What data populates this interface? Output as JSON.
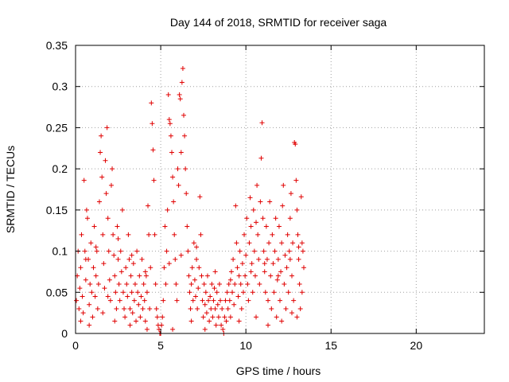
{
  "chart_data": {
    "type": "scatter",
    "title": "Day 144 of 2018, SRMTID for receiver saga",
    "xlabel": "GPS time / hours",
    "ylabel": "SRMTID / TECUs",
    "xlim": [
      0,
      24
    ],
    "ylim": [
      0,
      0.35
    ],
    "xticks": [
      0,
      5,
      10,
      15,
      20
    ],
    "xtick_labels": [
      "0",
      "5",
      "10",
      "15",
      "20"
    ],
    "yticks": [
      0,
      0.05,
      0.1,
      0.15,
      0.2,
      0.25,
      0.3,
      0.35
    ],
    "ytick_labels": [
      "0",
      "0.05",
      "0.1",
      "0.15",
      "0.2",
      "0.25",
      "0.3",
      "0.35"
    ],
    "grid": true,
    "marker": "plus",
    "color": "#e00000",
    "series": [
      {
        "name": "SRMTID",
        "points": [
          [
            0.05,
            0.04
          ],
          [
            0.1,
            0.07
          ],
          [
            0.15,
            0.1
          ],
          [
            0.2,
            0.03
          ],
          [
            0.25,
            0.055
          ],
          [
            0.3,
            0.08
          ],
          [
            0.35,
            0.12
          ],
          [
            0.4,
            0.045
          ],
          [
            0.45,
            0.025
          ],
          [
            0.5,
            0.186
          ],
          [
            0.55,
            0.1
          ],
          [
            0.6,
            0.065
          ],
          [
            0.65,
            0.15
          ],
          [
            0.7,
            0.14
          ],
          [
            0.75,
            0.09
          ],
          [
            0.8,
            0.035
          ],
          [
            0.85,
            0.06
          ],
          [
            0.9,
            0.11
          ],
          [
            0.95,
            0.05
          ],
          [
            1.0,
            0.02
          ],
          [
            1.05,
            0.08
          ],
          [
            1.1,
            0.13
          ],
          [
            1.15,
            0.045
          ],
          [
            1.2,
            0.07
          ],
          [
            1.25,
            0.1
          ],
          [
            1.3,
            0.03
          ],
          [
            1.35,
            0.06
          ],
          [
            1.4,
            0.16
          ],
          [
            1.45,
            0.22
          ],
          [
            1.5,
            0.24
          ],
          [
            1.55,
            0.19
          ],
          [
            1.6,
            0.12
          ],
          [
            1.65,
            0.085
          ],
          [
            1.7,
            0.055
          ],
          [
            1.75,
            0.21
          ],
          [
            1.8,
            0.17
          ],
          [
            1.85,
            0.25
          ],
          [
            1.9,
            0.14
          ],
          [
            1.95,
            0.1
          ],
          [
            2.0,
            0.065
          ],
          [
            2.05,
            0.04
          ],
          [
            2.1,
            0.18
          ],
          [
            2.15,
            0.2
          ],
          [
            2.2,
            0.12
          ],
          [
            2.25,
            0.095
          ],
          [
            2.3,
            0.07
          ],
          [
            2.35,
            0.05
          ],
          [
            2.4,
            0.03
          ],
          [
            2.45,
            0.13
          ],
          [
            2.5,
            0.09
          ],
          [
            2.55,
            0.06
          ],
          [
            2.6,
            0.04
          ],
          [
            2.65,
            0.1
          ],
          [
            2.7,
            0.075
          ],
          [
            2.75,
            0.15
          ],
          [
            2.8,
            0.05
          ],
          [
            2.85,
            0.03
          ],
          [
            2.9,
            0.02
          ],
          [
            2.95,
            0.08
          ],
          [
            3.0,
            0.06
          ],
          [
            3.05,
            0.045
          ],
          [
            3.1,
            0.12
          ],
          [
            3.15,
            0.09
          ],
          [
            3.2,
            0.03
          ],
          [
            3.25,
            0.07
          ],
          [
            3.3,
            0.05
          ],
          [
            3.35,
            0.025
          ],
          [
            3.4,
            0.085
          ],
          [
            3.45,
            0.04
          ],
          [
            3.5,
            0.06
          ],
          [
            3.55,
            0.015
          ],
          [
            3.6,
            0.1
          ],
          [
            3.65,
            0.05
          ],
          [
            3.7,
            0.035
          ],
          [
            3.75,
            0.07
          ],
          [
            3.8,
            0.02
          ],
          [
            3.85,
            0.045
          ],
          [
            3.9,
            0.09
          ],
          [
            3.95,
            0.03
          ],
          [
            4.0,
            0.06
          ],
          [
            4.05,
            0.04
          ],
          [
            4.1,
            0.015
          ],
          [
            4.15,
            0.07
          ],
          [
            4.2,
            0.05
          ],
          [
            4.25,
            0.155
          ],
          [
            4.3,
            0.12
          ],
          [
            4.35,
            0.03
          ],
          [
            4.4,
            0.08
          ],
          [
            4.45,
            0.28
          ],
          [
            4.5,
            0.255
          ],
          [
            4.55,
            0.223
          ],
          [
            4.6,
            0.186
          ],
          [
            4.65,
            0.12
          ],
          [
            4.7,
            0.06
          ],
          [
            4.75,
            0.03
          ],
          [
            4.8,
            0.02
          ],
          [
            4.85,
            0.01
          ],
          [
            4.9,
            0.005
          ],
          [
            4.95,
            0.0
          ],
          [
            5.0,
            0.0
          ],
          [
            5.05,
            0.01
          ],
          [
            5.1,
            0.02
          ],
          [
            5.15,
            0.04
          ],
          [
            5.2,
            0.08
          ],
          [
            5.25,
            0.13
          ],
          [
            5.3,
            0.06
          ],
          [
            5.35,
            0.1
          ],
          [
            5.4,
            0.15
          ],
          [
            5.45,
            0.29
          ],
          [
            5.5,
            0.26
          ],
          [
            5.55,
            0.255
          ],
          [
            5.6,
            0.24
          ],
          [
            5.65,
            0.22
          ],
          [
            5.7,
            0.19
          ],
          [
            5.75,
            0.16
          ],
          [
            5.8,
            0.12
          ],
          [
            5.85,
            0.09
          ],
          [
            5.9,
            0.06
          ],
          [
            5.95,
            0.04
          ],
          [
            6.0,
            0.2
          ],
          [
            6.05,
            0.18
          ],
          [
            6.1,
            0.29
          ],
          [
            6.15,
            0.285
          ],
          [
            6.2,
            0.22
          ],
          [
            6.25,
            0.305
          ],
          [
            6.3,
            0.322
          ],
          [
            6.35,
            0.265
          ],
          [
            6.4,
            0.24
          ],
          [
            6.45,
            0.2
          ],
          [
            6.5,
            0.17
          ],
          [
            6.55,
            0.13
          ],
          [
            6.6,
            0.1
          ],
          [
            6.65,
            0.07
          ],
          [
            6.7,
            0.05
          ],
          [
            6.75,
            0.03
          ],
          [
            6.8,
            0.06
          ],
          [
            6.85,
            0.08
          ],
          [
            6.9,
            0.04
          ],
          [
            6.95,
            0.11
          ],
          [
            7.0,
            0.065
          ],
          [
            7.05,
            0.045
          ],
          [
            7.1,
            0.09
          ],
          [
            7.15,
            0.03
          ],
          [
            7.2,
            0.055
          ],
          [
            7.25,
            0.08
          ],
          [
            7.3,
            0.166
          ],
          [
            7.35,
            0.12
          ],
          [
            7.4,
            0.07
          ],
          [
            7.45,
            0.04
          ],
          [
            7.5,
            0.02
          ],
          [
            7.55,
            0.06
          ],
          [
            7.6,
            0.035
          ],
          [
            7.65,
            0.05
          ],
          [
            7.7,
            0.025
          ],
          [
            7.75,
            0.07
          ],
          [
            7.8,
            0.04
          ],
          [
            7.85,
            0.015
          ],
          [
            7.9,
            0.045
          ],
          [
            7.95,
            0.03
          ],
          [
            8.0,
            0.06
          ],
          [
            8.05,
            0.02
          ],
          [
            8.1,
            0.04
          ],
          [
            8.15,
            0.055
          ],
          [
            8.2,
            0.03
          ],
          [
            8.25,
            0.01
          ],
          [
            8.3,
            0.05
          ],
          [
            8.35,
            0.035
          ],
          [
            8.4,
            0.02
          ],
          [
            8.45,
            0.06
          ],
          [
            8.5,
            0.04
          ],
          [
            8.55,
            0.01
          ],
          [
            8.6,
            0.03
          ],
          [
            8.65,
            0.005
          ],
          [
            8.7,
            0.0
          ],
          [
            8.75,
            0.02
          ],
          [
            8.8,
            0.04
          ],
          [
            8.85,
            0.015
          ],
          [
            8.9,
            0.05
          ],
          [
            8.95,
            0.03
          ],
          [
            9.0,
            0.06
          ],
          [
            9.05,
            0.04
          ],
          [
            9.1,
            0.02
          ],
          [
            9.15,
            0.075
          ],
          [
            9.2,
            0.05
          ],
          [
            9.25,
            0.09
          ],
          [
            9.3,
            0.035
          ],
          [
            9.35,
            0.06
          ],
          [
            9.4,
            0.155
          ],
          [
            9.45,
            0.11
          ],
          [
            9.5,
            0.08
          ],
          [
            9.55,
            0.045
          ],
          [
            9.6,
            0.07
          ],
          [
            9.65,
            0.1
          ],
          [
            9.7,
            0.06
          ],
          [
            9.75,
            0.03
          ],
          [
            9.8,
            0.085
          ],
          [
            9.85,
            0.05
          ],
          [
            9.9,
            0.12
          ],
          [
            9.95,
            0.07
          ],
          [
            10.0,
            0.095
          ],
          [
            10.05,
            0.14
          ],
          [
            10.1,
            0.06
          ],
          [
            10.15,
            0.04
          ],
          [
            10.2,
            0.11
          ],
          [
            10.25,
            0.165
          ],
          [
            10.3,
            0.13
          ],
          [
            10.35,
            0.085
          ],
          [
            10.4,
            0.05
          ],
          [
            10.45,
            0.15
          ],
          [
            10.5,
            0.1
          ],
          [
            10.55,
            0.07
          ],
          [
            10.6,
            0.135
          ],
          [
            10.65,
            0.18
          ],
          [
            10.7,
            0.12
          ],
          [
            10.75,
            0.09
          ],
          [
            10.8,
            0.06
          ],
          [
            10.85,
            0.16
          ],
          [
            10.9,
            0.213
          ],
          [
            10.95,
            0.256
          ],
          [
            11.0,
            0.14
          ],
          [
            11.05,
            0.1
          ],
          [
            11.1,
            0.075
          ],
          [
            11.15,
            0.05
          ],
          [
            11.2,
            0.13
          ],
          [
            11.25,
            0.09
          ],
          [
            11.3,
            0.04
          ],
          [
            11.35,
            0.11
          ],
          [
            11.4,
            0.16
          ],
          [
            11.45,
            0.07
          ],
          [
            11.5,
            0.03
          ],
          [
            11.55,
            0.12
          ],
          [
            11.6,
            0.085
          ],
          [
            11.65,
            0.05
          ],
          [
            11.7,
            0.1
          ],
          [
            11.75,
            0.14
          ],
          [
            11.8,
            0.02
          ],
          [
            11.85,
            0.065
          ],
          [
            11.9,
            0.09
          ],
          [
            11.95,
            0.13
          ],
          [
            12.0,
            0.04
          ],
          [
            12.05,
            0.075
          ],
          [
            12.1,
            0.11
          ],
          [
            12.15,
            0.155
          ],
          [
            12.2,
            0.18
          ],
          [
            12.25,
            0.06
          ],
          [
            12.3,
            0.095
          ],
          [
            12.35,
            0.03
          ],
          [
            12.4,
            0.08
          ],
          [
            12.45,
            0.12
          ],
          [
            12.5,
            0.05
          ],
          [
            12.55,
            0.1
          ],
          [
            12.6,
            0.14
          ],
          [
            12.65,
            0.17
          ],
          [
            12.7,
            0.07
          ],
          [
            12.75,
            0.11
          ],
          [
            12.8,
            0.04
          ],
          [
            12.85,
            0.232
          ],
          [
            12.9,
            0.23
          ],
          [
            12.95,
            0.186
          ],
          [
            13.0,
            0.15
          ],
          [
            13.05,
            0.12
          ],
          [
            13.1,
            0.09
          ],
          [
            13.15,
            0.06
          ],
          [
            13.2,
            0.03
          ],
          [
            13.25,
            0.166
          ],
          [
            13.3,
            0.11
          ],
          [
            13.35,
            0.1
          ],
          [
            13.4,
            0.08
          ],
          [
            13.3,
            0.05
          ],
          [
            13.0,
            0.02
          ],
          [
            0.3,
            0.015
          ],
          [
            0.8,
            0.01
          ],
          [
            1.6,
            0.025
          ],
          [
            2.3,
            0.015
          ],
          [
            3.2,
            0.01
          ],
          [
            4.2,
            0.005
          ],
          [
            5.7,
            0.005
          ],
          [
            6.8,
            0.015
          ],
          [
            7.6,
            0.005
          ],
          [
            9.6,
            0.015
          ],
          [
            10.6,
            0.02
          ],
          [
            11.3,
            0.01
          ],
          [
            12.1,
            0.015
          ],
          [
            12.7,
            0.025
          ],
          [
            0.6,
            0.09
          ],
          [
            1.2,
            0.105
          ],
          [
            2.5,
            0.115
          ],
          [
            3.3,
            0.095
          ],
          [
            4.1,
            0.075
          ],
          [
            5.5,
            0.085
          ],
          [
            6.2,
            0.095
          ],
          [
            7.1,
            0.105
          ],
          [
            8.2,
            0.075
          ],
          [
            9.1,
            0.065
          ],
          [
            10.3,
            0.075
          ],
          [
            11.1,
            0.085
          ],
          [
            11.9,
            0.07
          ],
          [
            12.6,
            0.09
          ],
          [
            13.1,
            0.105
          ],
          [
            1.9,
            0.045
          ]
        ]
      }
    ]
  }
}
